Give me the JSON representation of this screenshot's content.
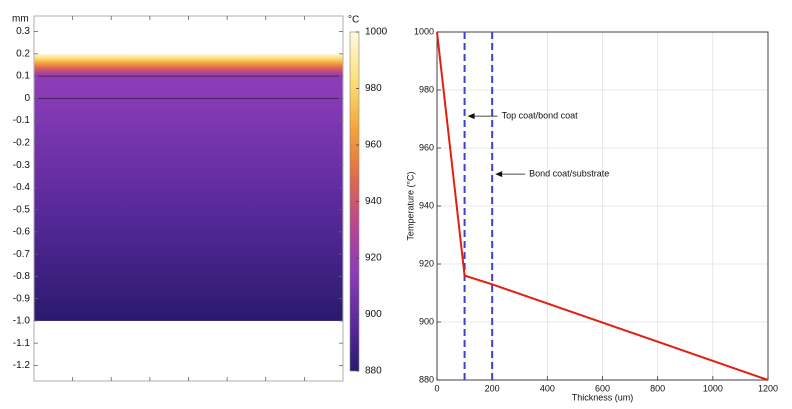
{
  "chart_data": [
    {
      "type": "heatmap",
      "y_unit_label": "mm",
      "y_ticks": [
        "0.3",
        "0.2",
        "0.1",
        "0",
        "-0.1",
        "-0.2",
        "-0.3",
        "-0.4",
        "-0.5",
        "-0.6",
        "-0.7",
        "-0.8",
        "-0.9",
        "-1.0",
        "-1.1",
        "-1.2"
      ],
      "y_tick_values": [
        0.3,
        0.2,
        0.1,
        0,
        -0.1,
        -0.2,
        -0.3,
        -0.4,
        -0.5,
        -0.6,
        -0.7,
        -0.8,
        -0.9,
        -1.0,
        -1.1,
        -1.2
      ],
      "ylim": [
        -1.27,
        0.37
      ],
      "domain_y": [
        -1.0,
        0.2
      ],
      "layer_boundaries_y": [
        0.1,
        0
      ],
      "temperature_range": [
        880,
        1000
      ],
      "temperature_profile": [
        {
          "y": 0.2,
          "t": 1000
        },
        {
          "y": 0.1,
          "t": 916
        },
        {
          "y": 0.0,
          "t": 913
        },
        {
          "y": -1.0,
          "t": 880
        }
      ],
      "colorbar": {
        "unit_label": "°C",
        "ticks": [
          "1000",
          "980",
          "960",
          "940",
          "920",
          "900",
          "880"
        ],
        "tick_values": [
          1000,
          980,
          960,
          940,
          920,
          900,
          880
        ],
        "range": [
          880,
          1000
        ],
        "colors": [
          "#2a1a6e",
          "#5a2a9c",
          "#8a3cb8",
          "#b8468f",
          "#e06a4a",
          "#f4a53a",
          "#fbe07a",
          "#fefadf"
        ]
      }
    },
    {
      "type": "line",
      "xlabel": "Thickness (um)",
      "ylabel": "Temperature (°C)",
      "xlim": [
        0,
        1200
      ],
      "ylim": [
        880,
        1000
      ],
      "x_ticks": [
        "0",
        "200",
        "400",
        "600",
        "800",
        "1000",
        "1200"
      ],
      "x_tick_values": [
        0,
        200,
        400,
        600,
        800,
        1000,
        1200
      ],
      "y_ticks": [
        "880",
        "900",
        "920",
        "940",
        "960",
        "980",
        "1000"
      ],
      "y_tick_values": [
        880,
        900,
        920,
        940,
        960,
        980,
        1000
      ],
      "grid": true,
      "series": [
        {
          "x": [
            0,
            100,
            200,
            1200
          ],
          "y": [
            1000,
            916,
            913,
            880
          ],
          "color": "#e02010"
        }
      ],
      "vlines": [
        {
          "x": 100,
          "color": "#4040c8"
        },
        {
          "x": 200,
          "color": "#4040c8"
        }
      ],
      "annotations": [
        {
          "text": "Top coat/bond coat",
          "x": 100,
          "y": 971
        },
        {
          "text": "Bond coat/substrate",
          "x": 200,
          "y": 951
        }
      ]
    }
  ]
}
